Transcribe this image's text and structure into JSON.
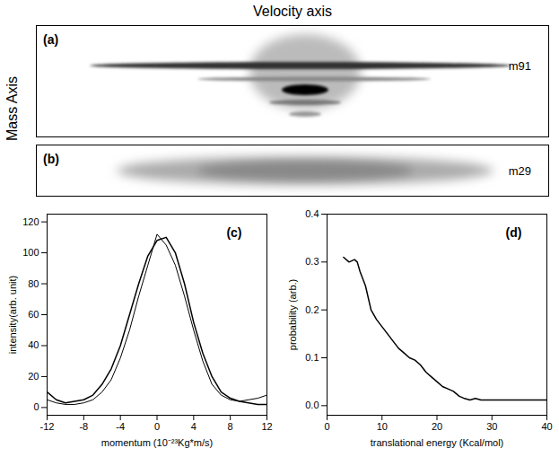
{
  "chart_data": [
    {
      "type": "image",
      "panel": "(a)",
      "title": "Velocity axis",
      "y_label": "Mass Axis",
      "annotation": "m91"
    },
    {
      "type": "image",
      "panel": "(b)",
      "annotation": "m29"
    },
    {
      "type": "line",
      "panel": "(c)",
      "x_label": "momentum (10⁻²³Kg*m/s)",
      "y_label": "intensity(arb. unit)",
      "x": [
        -12,
        -11,
        -10,
        -9,
        -8,
        -7,
        -6,
        -5,
        -4,
        -3,
        -2,
        -1,
        0,
        1,
        2,
        3,
        4,
        5,
        6,
        7,
        8,
        9,
        10,
        11,
        12
      ],
      "series": [
        {
          "color": "#000000",
          "values": [
            10,
            5,
            3,
            4,
            5,
            8,
            15,
            25,
            40,
            60,
            80,
            98,
            108,
            110,
            100,
            80,
            55,
            35,
            20,
            10,
            6,
            4,
            3,
            2,
            2
          ]
        },
        {
          "color": "#000000",
          "values": [
            5,
            3,
            2,
            2,
            3,
            5,
            10,
            18,
            32,
            50,
            72,
            92,
            112,
            105,
            92,
            72,
            50,
            30,
            15,
            8,
            5,
            4,
            5,
            6,
            8
          ]
        }
      ],
      "xlim": [
        -12,
        12
      ],
      "xticks": [
        -12,
        -8,
        -4,
        0,
        4,
        8,
        12
      ],
      "ylim": [
        -5,
        125
      ],
      "yticks": [
        0,
        20,
        40,
        60,
        80,
        100,
        120
      ]
    },
    {
      "type": "line",
      "panel": "(d)",
      "x_label": "translational energy (Kcal/mol)",
      "y_label": "probability (arb.)",
      "x": [
        3,
        4,
        5,
        5.5,
        6,
        7,
        8,
        9,
        10,
        11,
        12,
        13,
        14,
        15,
        16,
        17,
        18,
        19,
        20,
        21,
        22,
        23,
        24,
        25,
        26,
        27,
        28,
        30,
        32,
        35,
        38,
        40
      ],
      "series": [
        {
          "color": "#000000",
          "values": [
            0.31,
            0.3,
            0.305,
            0.3,
            0.28,
            0.25,
            0.2,
            0.18,
            0.165,
            0.15,
            0.135,
            0.12,
            0.11,
            0.1,
            0.095,
            0.085,
            0.07,
            0.06,
            0.05,
            0.04,
            0.035,
            0.03,
            0.02,
            0.015,
            0.012,
            0.015,
            0.012,
            0.012,
            0.012,
            0.012,
            0.012,
            0.012
          ]
        }
      ],
      "xlim": [
        0,
        40
      ],
      "xticks": [
        0,
        10,
        20,
        30,
        40
      ],
      "ylim": [
        -0.02,
        0.4
      ],
      "yticks": [
        {
          "value": 0,
          "label": "0.0"
        },
        {
          "value": 0.1,
          "label": "0.1"
        },
        {
          "value": 0.2,
          "label": "0.2"
        },
        {
          "value": 0.3,
          "label": "0.3"
        },
        {
          "value": 0.4,
          "label": "0.4"
        }
      ]
    }
  ]
}
